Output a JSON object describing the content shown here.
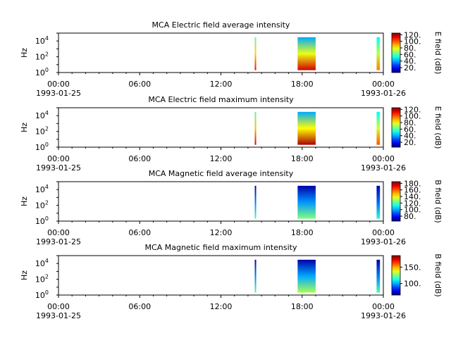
{
  "chart_data": [
    {
      "type": "heatmap",
      "title": "MCA  Electric field average intensity",
      "ylabel": "Hz",
      "cbar_label": "E field (dB)",
      "cbar_ticks": [
        "20.",
        "40.",
        "60.",
        "80.",
        "100.",
        "120."
      ],
      "cbar_range": [
        5,
        125
      ],
      "y_scale": "log",
      "y_range": [
        1,
        100000
      ],
      "x_tick_labels": [
        "00:00",
        "06:00",
        "12:00",
        "18:00",
        "00:00"
      ],
      "x_date_labels": [
        "1993-01-25",
        "1993-01-26"
      ],
      "bursts": [
        {
          "start": "14:30",
          "end": "14:35",
          "min_db": 60,
          "max_db": 110
        },
        {
          "start": "17:40",
          "end": "19:00",
          "min_db": 40,
          "max_db": 115
        },
        {
          "start": "23:30",
          "end": "23:45",
          "min_db": 50,
          "max_db": 95
        }
      ]
    },
    {
      "type": "heatmap",
      "title": "MCA  Electric field maximum intensity",
      "ylabel": "Hz",
      "cbar_label": "E field (dB)",
      "cbar_ticks": [
        "20.",
        "40.",
        "60.",
        "80.",
        "100.",
        "120."
      ],
      "cbar_range": [
        5,
        125
      ],
      "y_scale": "log",
      "y_range": [
        1,
        100000
      ],
      "x_tick_labels": [
        "00:00",
        "06:00",
        "12:00",
        "18:00",
        "00:00"
      ],
      "x_date_labels": [
        "1993-01-25",
        "1993-01-26"
      ],
      "bursts": [
        {
          "start": "14:30",
          "end": "14:35",
          "min_db": 60,
          "max_db": 115
        },
        {
          "start": "17:40",
          "end": "19:00",
          "min_db": 40,
          "max_db": 120
        },
        {
          "start": "23:30",
          "end": "23:45",
          "min_db": 50,
          "max_db": 100
        }
      ]
    },
    {
      "type": "heatmap",
      "title": "MCA  Magnetic field average intensity",
      "ylabel": "Hz",
      "cbar_label": "B field (dB)",
      "cbar_ticks": [
        "80.",
        "100.",
        "120.",
        "140.",
        "160.",
        "180."
      ],
      "cbar_range": [
        65,
        185
      ],
      "y_scale": "log",
      "y_range": [
        1,
        100000
      ],
      "x_tick_labels": [
        "00:00",
        "06:00",
        "12:00",
        "18:00",
        "00:00"
      ],
      "x_date_labels": [
        "1993-01-25",
        "1993-01-26"
      ],
      "bursts": [
        {
          "start": "14:30",
          "end": "14:35",
          "min_db": 70,
          "max_db": 120
        },
        {
          "start": "17:40",
          "end": "19:00",
          "min_db": 70,
          "max_db": 125
        },
        {
          "start": "23:30",
          "end": "23:45",
          "min_db": 70,
          "max_db": 115
        }
      ]
    },
    {
      "type": "heatmap",
      "title": "MCA  Magnetic field maximum intensity",
      "ylabel": "Hz",
      "cbar_label": "B field (dB)",
      "cbar_ticks": [
        "100.",
        "150."
      ],
      "cbar_range": [
        65,
        185
      ],
      "y_scale": "log",
      "y_range": [
        1,
        100000
      ],
      "x_tick_labels": [
        "00:00",
        "06:00",
        "12:00",
        "18:00",
        "00:00"
      ],
      "x_date_labels": [
        "1993-01-25",
        "1993-01-26"
      ],
      "bursts": [
        {
          "start": "14:30",
          "end": "14:35",
          "min_db": 70,
          "max_db": 120
        },
        {
          "start": "17:40",
          "end": "19:00",
          "min_db": 70,
          "max_db": 130
        },
        {
          "start": "23:30",
          "end": "23:45",
          "min_db": 70,
          "max_db": 120
        }
      ]
    }
  ]
}
